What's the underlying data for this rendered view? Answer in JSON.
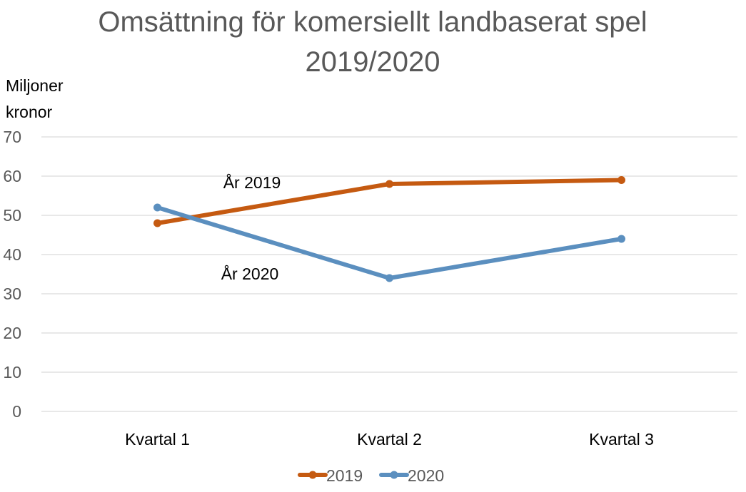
{
  "chart_data": {
    "type": "line",
    "title": "Omsättning för komersiellt landbaserat spel",
    "subtitle": "2019/2020",
    "ylabel": [
      "Miljoner",
      "kronor"
    ],
    "xlabel": "",
    "categories": [
      "Kvartal 1",
      "Kvartal 2",
      "Kvartal 3"
    ],
    "ylim": [
      0,
      70
    ],
    "yticks": [
      0,
      10,
      20,
      30,
      40,
      50,
      60,
      70
    ],
    "grid": true,
    "legend_position": "bottom",
    "series": [
      {
        "name": "2019",
        "values": [
          48,
          58,
          59
        ],
        "color": "#C55A11"
      },
      {
        "name": "2020",
        "values": [
          52,
          34,
          44
        ],
        "color": "#5B8FBF"
      }
    ],
    "annotations": [
      {
        "text": "År 2019",
        "series": "2019"
      },
      {
        "text": "År 2020",
        "series": "2020"
      }
    ]
  }
}
